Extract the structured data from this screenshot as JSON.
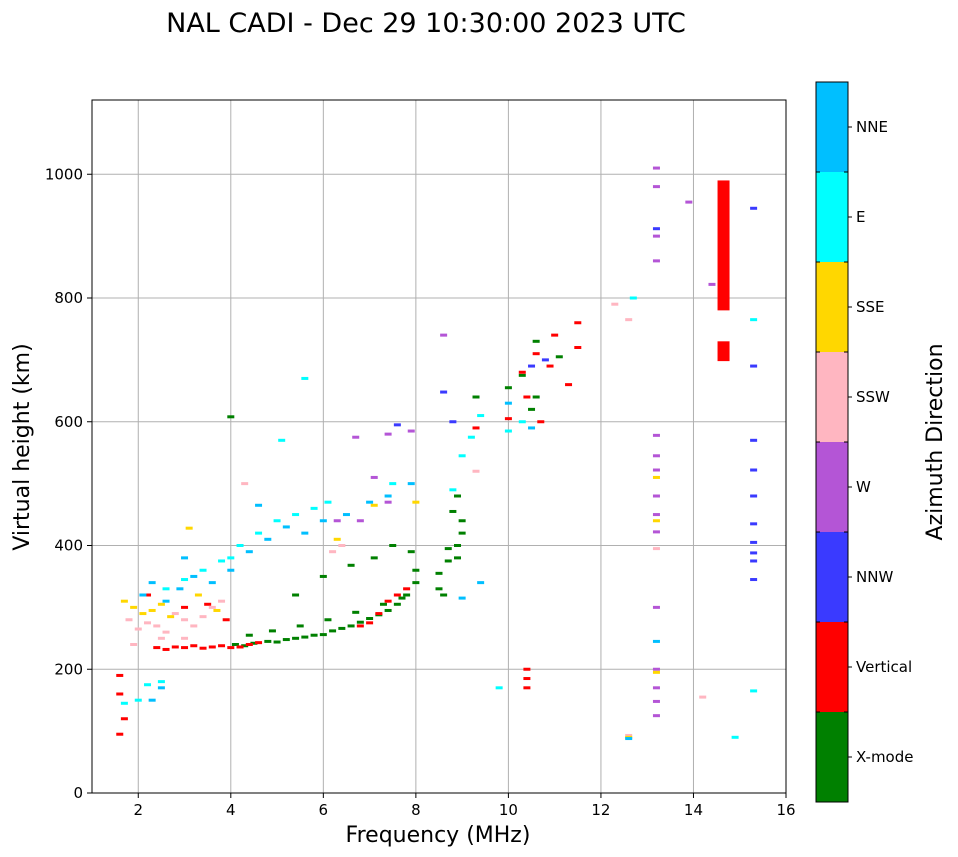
{
  "chart_data": {
    "type": "scatter",
    "title": "NAL CADI - Dec 29 10:30:00 2023 UTC",
    "xlabel": "Frequency (MHz)",
    "ylabel": "Virtual height (km)",
    "xlim": [
      1,
      16
    ],
    "ylim": [
      0,
      1120
    ],
    "xticks": [
      "2",
      "4",
      "6",
      "8",
      "10",
      "12",
      "14",
      "16"
    ],
    "yticks": [
      "0",
      "200",
      "400",
      "600",
      "800",
      "1000"
    ],
    "grid": true,
    "colorbar": {
      "label": "Azimuth Direction",
      "categories": [
        "X-mode",
        "Vertical",
        "NNW",
        "W",
        "SSW",
        "SSE",
        "E",
        "NNE"
      ],
      "colors": [
        "#008000",
        "#ff0000",
        "#3a3aff",
        "#b455d6",
        "#ffb6c1",
        "#ffd700",
        "#00ffff",
        "#00bfff"
      ]
    },
    "series": [
      {
        "name": "X-mode",
        "points": [
          [
            4.1,
            240
          ],
          [
            4.3,
            238
          ],
          [
            4.5,
            242
          ],
          [
            4.8,
            245
          ],
          [
            5.0,
            244
          ],
          [
            5.2,
            248
          ],
          [
            5.4,
            250
          ],
          [
            5.6,
            252
          ],
          [
            5.8,
            255
          ],
          [
            6.0,
            256
          ],
          [
            6.2,
            262
          ],
          [
            6.4,
            266
          ],
          [
            6.6,
            270
          ],
          [
            6.8,
            276
          ],
          [
            7.0,
            282
          ],
          [
            7.2,
            288
          ],
          [
            7.4,
            295
          ],
          [
            7.6,
            305
          ],
          [
            7.8,
            320
          ],
          [
            8.0,
            340
          ],
          [
            4.4,
            255
          ],
          [
            4.9,
            262
          ],
          [
            5.5,
            270
          ],
          [
            6.1,
            280
          ],
          [
            6.7,
            292
          ],
          [
            7.3,
            305
          ],
          [
            7.7,
            315
          ],
          [
            8.0,
            360
          ],
          [
            7.9,
            390
          ],
          [
            8.5,
            330
          ],
          [
            8.5,
            355
          ],
          [
            8.7,
            375
          ],
          [
            8.7,
            395
          ],
          [
            8.9,
            400
          ],
          [
            9.0,
            420
          ],
          [
            9.0,
            440
          ],
          [
            8.8,
            455
          ],
          [
            8.9,
            480
          ],
          [
            8.6,
            320
          ],
          [
            8.9,
            380
          ],
          [
            5.4,
            320
          ],
          [
            6.0,
            350
          ],
          [
            6.6,
            368
          ],
          [
            7.1,
            380
          ],
          [
            7.5,
            400
          ],
          [
            10.0,
            655
          ],
          [
            10.3,
            675
          ],
          [
            10.6,
            640
          ],
          [
            10.6,
            730
          ],
          [
            11.1,
            705
          ],
          [
            10.5,
            620
          ],
          [
            9.3,
            640
          ],
          [
            4.0,
            608
          ]
        ]
      },
      {
        "name": "Vertical",
        "points": [
          [
            2.4,
            235
          ],
          [
            2.6,
            232
          ],
          [
            2.8,
            236
          ],
          [
            3.0,
            235
          ],
          [
            3.2,
            238
          ],
          [
            3.4,
            234
          ],
          [
            3.6,
            236
          ],
          [
            3.8,
            238
          ],
          [
            4.0,
            235
          ],
          [
            4.2,
            236
          ],
          [
            4.4,
            240
          ],
          [
            4.6,
            243
          ],
          [
            6.8,
            270
          ],
          [
            7.0,
            275
          ],
          [
            7.2,
            290
          ],
          [
            7.4,
            310
          ],
          [
            7.6,
            320
          ],
          [
            7.8,
            330
          ],
          [
            3.0,
            300
          ],
          [
            3.5,
            305
          ],
          [
            3.9,
            280
          ],
          [
            2.2,
            320
          ],
          [
            10.6,
            710
          ],
          [
            10.3,
            680
          ],
          [
            10.9,
            690
          ],
          [
            11.0,
            740
          ],
          [
            11.5,
            760
          ],
          [
            11.5,
            720
          ],
          [
            11.3,
            660
          ],
          [
            10.7,
            600
          ],
          [
            10.0,
            605
          ],
          [
            10.4,
            640
          ],
          [
            9.3,
            590
          ],
          [
            1.6,
            190
          ],
          [
            1.6,
            160
          ],
          [
            1.6,
            95
          ],
          [
            1.7,
            120
          ],
          [
            10.4,
            200
          ],
          [
            10.4,
            185
          ],
          [
            10.4,
            170
          ]
        ]
      },
      {
        "name": "NNW",
        "points": [
          [
            15.3,
            945
          ],
          [
            15.3,
            690
          ],
          [
            15.3,
            570
          ],
          [
            15.3,
            522
          ],
          [
            15.3,
            480
          ],
          [
            15.3,
            435
          ],
          [
            15.3,
            405
          ],
          [
            15.3,
            388
          ],
          [
            15.3,
            375
          ],
          [
            15.3,
            345
          ],
          [
            13.2,
            912
          ],
          [
            7.6,
            595
          ],
          [
            8.6,
            648
          ],
          [
            8.8,
            600
          ],
          [
            10.5,
            690
          ],
          [
            10.8,
            700
          ]
        ]
      },
      {
        "name": "W",
        "points": [
          [
            13.2,
            1010
          ],
          [
            13.2,
            980
          ],
          [
            13.2,
            900
          ],
          [
            13.2,
            860
          ],
          [
            13.2,
            578
          ],
          [
            13.2,
            545
          ],
          [
            13.2,
            522
          ],
          [
            13.2,
            480
          ],
          [
            13.2,
            450
          ],
          [
            13.2,
            422
          ],
          [
            13.2,
            300
          ],
          [
            13.2,
            200
          ],
          [
            13.2,
            170
          ],
          [
            13.2,
            148
          ],
          [
            13.2,
            125
          ],
          [
            13.9,
            955
          ],
          [
            14.4,
            822
          ],
          [
            6.7,
            575
          ],
          [
            7.1,
            510
          ],
          [
            7.4,
            470
          ],
          [
            6.3,
            440
          ],
          [
            8.6,
            740
          ],
          [
            7.9,
            585
          ],
          [
            6.8,
            440
          ],
          [
            7.4,
            580
          ]
        ]
      },
      {
        "name": "SSW",
        "points": [
          [
            12.3,
            790
          ],
          [
            12.6,
            765
          ],
          [
            14.2,
            155
          ],
          [
            12.6,
            93
          ],
          [
            13.2,
            395
          ],
          [
            9.3,
            520
          ],
          [
            1.8,
            280
          ],
          [
            2.0,
            265
          ],
          [
            2.2,
            275
          ],
          [
            2.4,
            270
          ],
          [
            2.6,
            260
          ],
          [
            2.8,
            290
          ],
          [
            3.0,
            280
          ],
          [
            3.2,
            270
          ],
          [
            3.4,
            285
          ],
          [
            3.6,
            300
          ],
          [
            3.8,
            310
          ],
          [
            3.0,
            250
          ],
          [
            2.5,
            250
          ],
          [
            1.9,
            240
          ],
          [
            4.3,
            500
          ],
          [
            6.2,
            390
          ],
          [
            6.4,
            400
          ]
        ]
      },
      {
        "name": "SSE",
        "points": [
          [
            13.2,
            510
          ],
          [
            13.2,
            440
          ],
          [
            13.2,
            195
          ],
          [
            12.6,
            90
          ],
          [
            3.1,
            428
          ],
          [
            6.3,
            410
          ],
          [
            7.1,
            465
          ],
          [
            1.9,
            300
          ],
          [
            2.1,
            290
          ],
          [
            2.3,
            295
          ],
          [
            2.5,
            305
          ],
          [
            2.7,
            285
          ],
          [
            3.3,
            320
          ],
          [
            3.7,
            295
          ],
          [
            1.7,
            310
          ],
          [
            8.0,
            470
          ]
        ]
      },
      {
        "name": "E",
        "points": [
          [
            12.7,
            800
          ],
          [
            15.3,
            765
          ],
          [
            15.3,
            165
          ],
          [
            14.9,
            90
          ],
          [
            9.2,
            575
          ],
          [
            9.0,
            545
          ],
          [
            9.4,
            610
          ],
          [
            10.0,
            585
          ],
          [
            10.3,
            600
          ],
          [
            8.8,
            490
          ],
          [
            2.2,
            175
          ],
          [
            2.5,
            180
          ],
          [
            2.0,
            150
          ],
          [
            1.7,
            145
          ],
          [
            5.1,
            570
          ],
          [
            5.6,
            670
          ],
          [
            2.6,
            330
          ],
          [
            3.0,
            345
          ],
          [
            3.4,
            360
          ],
          [
            3.8,
            375
          ],
          [
            4.2,
            400
          ],
          [
            4.6,
            420
          ],
          [
            5.0,
            440
          ],
          [
            5.4,
            450
          ],
          [
            5.8,
            460
          ],
          [
            6.1,
            470
          ],
          [
            7.5,
            500
          ],
          [
            9.8,
            170
          ],
          [
            4.0,
            380
          ]
        ]
      },
      {
        "name": "NNE",
        "points": [
          [
            2.1,
            320
          ],
          [
            2.3,
            340
          ],
          [
            2.6,
            310
          ],
          [
            2.9,
            330
          ],
          [
            3.2,
            350
          ],
          [
            3.6,
            340
          ],
          [
            4.0,
            360
          ],
          [
            4.4,
            390
          ],
          [
            4.8,
            410
          ],
          [
            5.2,
            430
          ],
          [
            5.6,
            420
          ],
          [
            6.0,
            440
          ],
          [
            6.5,
            450
          ],
          [
            7.0,
            470
          ],
          [
            7.4,
            480
          ],
          [
            7.9,
            500
          ],
          [
            2.5,
            170
          ],
          [
            2.3,
            150
          ],
          [
            9.4,
            340
          ],
          [
            9.0,
            315
          ],
          [
            10.0,
            630
          ],
          [
            10.5,
            590
          ],
          [
            13.2,
            245
          ],
          [
            12.6,
            88
          ],
          [
            4.6,
            465
          ],
          [
            3.0,
            380
          ]
        ]
      }
    ],
    "bars": [
      {
        "category": "Vertical",
        "x": 14.65,
        "y_from": 780,
        "y_to": 990
      },
      {
        "category": "Vertical",
        "x": 14.65,
        "y_from": 698,
        "y_to": 730
      }
    ]
  }
}
